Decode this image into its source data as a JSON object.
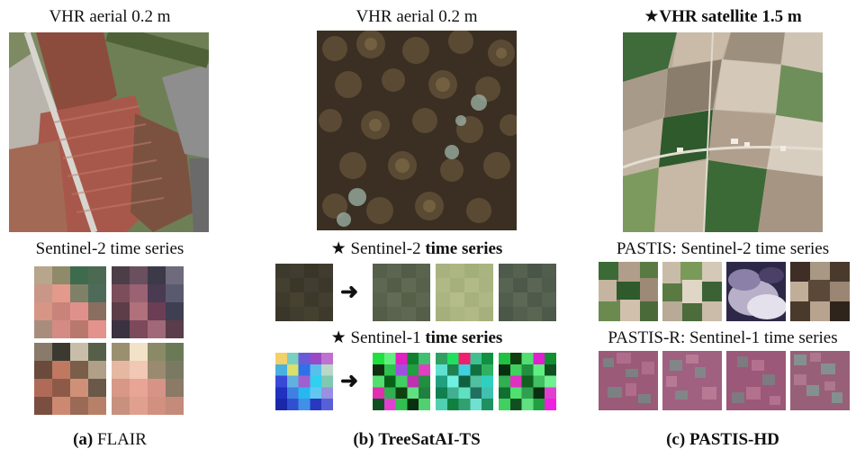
{
  "panel_a": {
    "vhr_label": "VHR aerial 0.2 m",
    "series_label": "Sentinel-2 time series",
    "caption_letter": "(a)",
    "caption_name": "FLAIR"
  },
  "panel_b": {
    "vhr_label": "VHR aerial 0.2 m",
    "s2_star": "★",
    "s2_prefix": "Sentinel-2",
    "s2_bold": "time series",
    "s1_star": "★",
    "s1_prefix": "Sentinel-1",
    "s1_bold": "time series",
    "arrow_symbol": "➜",
    "caption_letter": "(b)",
    "caption_name": "TreeSatAI-TS"
  },
  "panel_c": {
    "vhr_star": "★",
    "vhr_label": "VHR satellite 1.5 m",
    "s2_label": "PASTIS: Sentinel-2 time series",
    "s1_label": "PASTIS-R: Sentinel-1 time series",
    "caption_letter": "(c)",
    "caption_name": "PASTIS-HD"
  }
}
